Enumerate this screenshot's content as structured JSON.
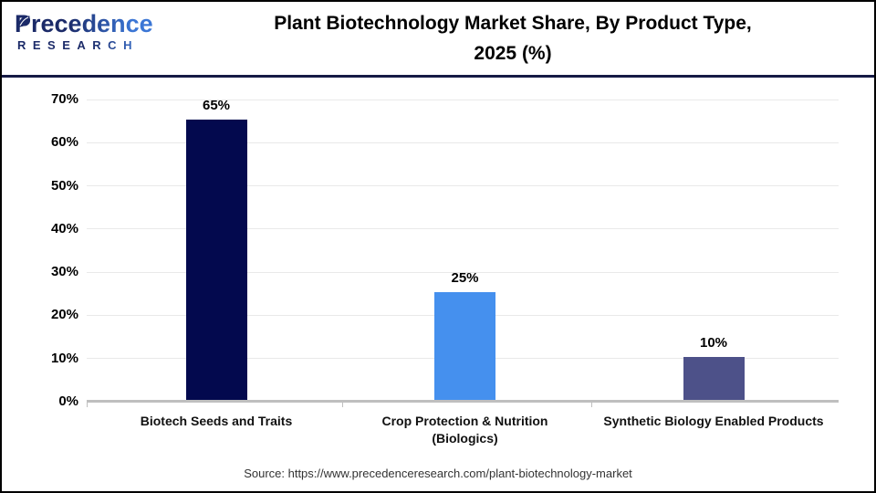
{
  "header": {
    "logo": {
      "brand_top": "Precedence",
      "brand_bottom": "RESEARCH"
    },
    "title_line1": "Plant Biotechnology Market Share, By Product Type,",
    "title_line2": "2025 (%)"
  },
  "chart_data": {
    "type": "bar",
    "title": "Plant Biotechnology Market Share, By Product Type, 2025 (%)",
    "categories": [
      "Biotech Seeds and Traits",
      "Crop Protection & Nutrition (Biologics)",
      "Synthetic Biology Enabled Products"
    ],
    "category_lines": [
      [
        "Biotech Seeds and Traits"
      ],
      [
        "Crop Protection & Nutrition",
        "(Biologics)"
      ],
      [
        "Synthetic Biology Enabled Products"
      ]
    ],
    "values": [
      65,
      25,
      10
    ],
    "value_labels": [
      "65%",
      "25%",
      "10%"
    ],
    "unit": "%",
    "series_colors": [
      "#03094E",
      "#4590EE",
      "#4D5189"
    ],
    "xlabel": "",
    "ylabel": "",
    "ylim": [
      0,
      70
    ],
    "ytick_step": 10,
    "ytick_labels": [
      "0%",
      "10%",
      "20%",
      "30%",
      "40%",
      "50%",
      "60%",
      "70%"
    ],
    "grid": true,
    "legend": false
  },
  "footer": {
    "source": "Source: https://www.precedenceresearch.com/plant-biotechnology-market"
  },
  "colors": {
    "header_divider": "#161A45",
    "axis_line": "#BFBFBF",
    "gridline": "#E9E9E9",
    "title_text": "#000000",
    "logo_navy": "#1B2A68",
    "logo_blue": "#3B76D5",
    "source_text": "#333333"
  }
}
